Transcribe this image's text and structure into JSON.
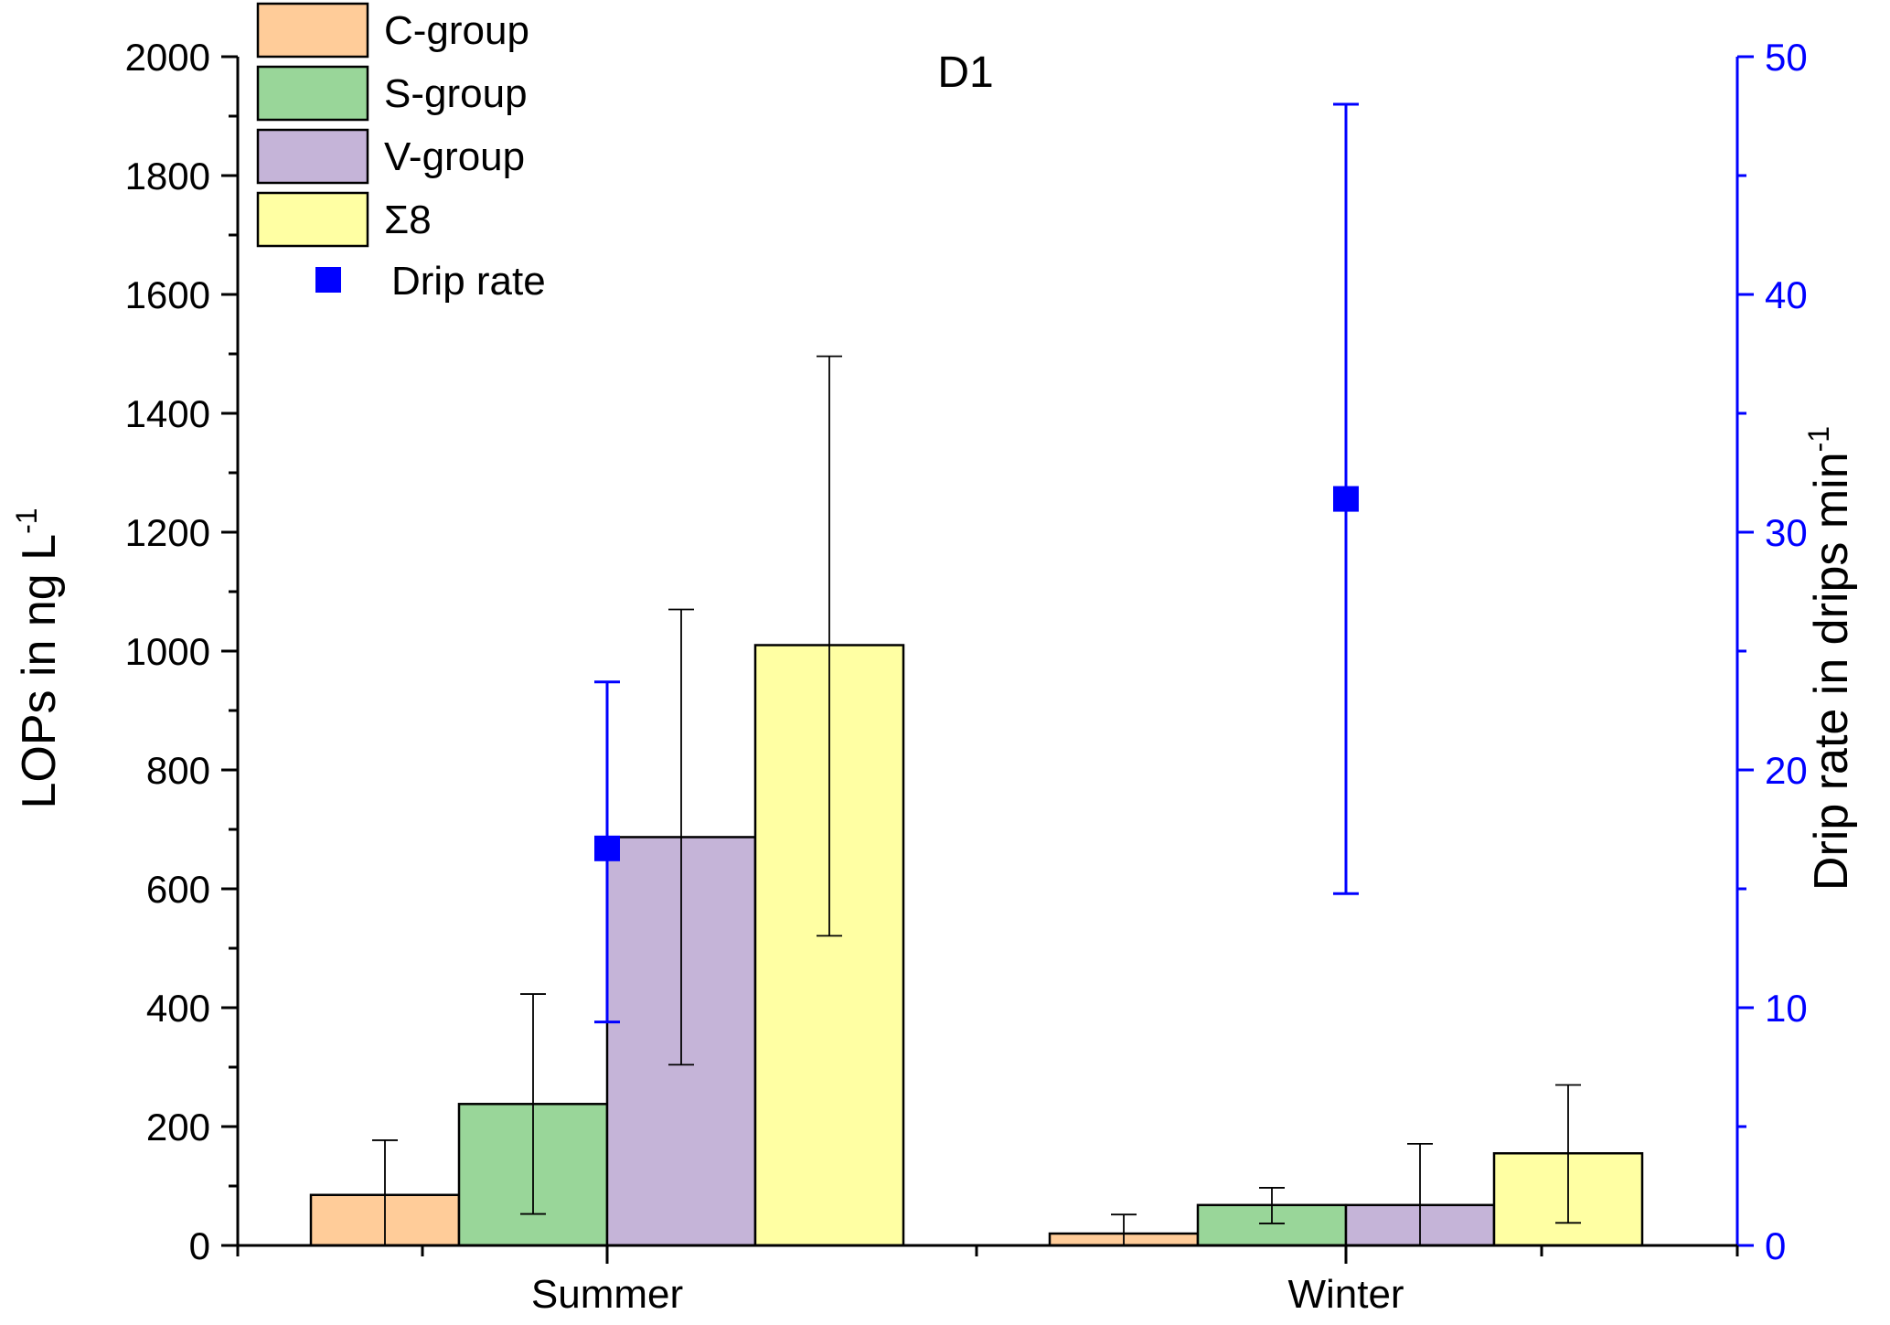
{
  "chart_data": {
    "type": "bar",
    "title": "D1",
    "categories": [
      "Summer",
      "Winter"
    ],
    "xlabel": "",
    "ylabel": {
      "text": "LOPs in ng L",
      "sup": "-1"
    },
    "ylim": [
      0,
      2000
    ],
    "yticks": [
      0,
      200,
      400,
      600,
      800,
      1000,
      1200,
      1400,
      1600,
      1800,
      2000
    ],
    "yticks_labels": [
      "0",
      "200",
      "400",
      "600",
      "800",
      "1000",
      "1200",
      "1400",
      "1600",
      "1800",
      "2000"
    ],
    "series": [
      {
        "name": "C-group",
        "color": "#FFCC99",
        "values": [
          85,
          20
        ],
        "err_low": [
          0,
          0
        ],
        "err_high": [
          177,
          52
        ]
      },
      {
        "name": "S-group",
        "color": "#99D699",
        "values": [
          238,
          68
        ],
        "err_low": [
          53,
          37
        ],
        "err_high": [
          423,
          97
        ]
      },
      {
        "name": "V-group",
        "color": "#C5B4D8",
        "values": [
          687,
          68
        ],
        "err_low": [
          304,
          0
        ],
        "err_high": [
          1070,
          171
        ]
      },
      {
        "name": "Σ8",
        "color": "#FFFFA3",
        "values": [
          1010,
          155
        ],
        "err_low": [
          521,
          38
        ],
        "err_high": [
          1496,
          270
        ]
      }
    ],
    "secondary_axis": {
      "label": {
        "text": "Drip rate in drips min",
        "sup": "-1"
      },
      "color": "#0000FF",
      "ylim": [
        0,
        50
      ],
      "yticks": [
        0,
        10,
        20,
        30,
        40,
        50
      ],
      "yticks_labels": [
        "0",
        "10",
        "20",
        "30",
        "40",
        "50"
      ],
      "series": {
        "name": "Drip rate",
        "type": "scatter",
        "marker": "square",
        "values": [
          16.7,
          31.4
        ],
        "err_low": [
          9.4,
          14.8
        ],
        "err_high": [
          23.7,
          48.0
        ]
      }
    },
    "legend_position": "top-left"
  },
  "colors": {
    "drip": "#0000FF",
    "axis": "#000000"
  }
}
